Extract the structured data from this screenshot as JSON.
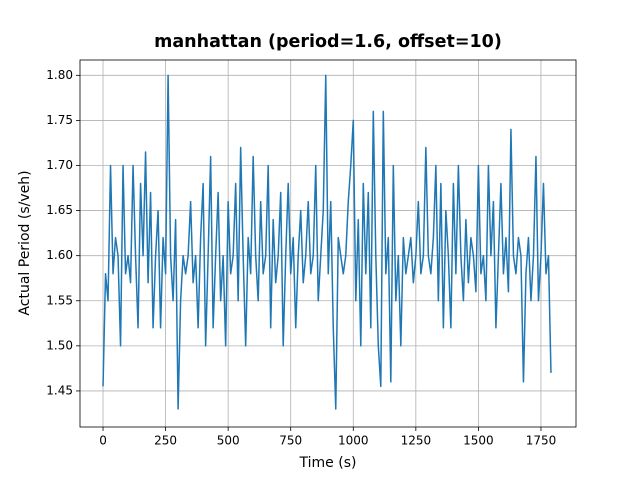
{
  "chart_data": {
    "type": "line",
    "title": "manhattan (period=1.6, offset=10)",
    "x_label": "Time (s)",
    "y_label": "Actual Period (s/veh)",
    "color": "#1f77b4",
    "title_color": "#8b0000",
    "grid": true,
    "xlim": [
      -92,
      1890
    ],
    "ylim": [
      1.41,
      1.817
    ],
    "xticks": [
      0,
      250,
      500,
      750,
      1000,
      1250,
      1500,
      1750
    ],
    "yticks": [
      1.45,
      {
        "value": 1.5,
        "label": "1.50"
      },
      1.55,
      {
        "value": 1.6,
        "label": "1.60"
      },
      1.65,
      {
        "value": 1.7,
        "label": "1.70"
      },
      1.75,
      {
        "value": 1.8,
        "label": "1.80"
      }
    ],
    "x": [
      0,
      10,
      20,
      30,
      40,
      50,
      60,
      70,
      80,
      90,
      100,
      110,
      120,
      130,
      140,
      150,
      160,
      170,
      180,
      190,
      200,
      210,
      220,
      230,
      240,
      250,
      260,
      270,
      280,
      290,
      300,
      310,
      320,
      330,
      340,
      350,
      360,
      370,
      380,
      390,
      400,
      410,
      420,
      430,
      440,
      450,
      460,
      470,
      480,
      490,
      500,
      510,
      520,
      530,
      540,
      550,
      560,
      570,
      580,
      590,
      600,
      610,
      620,
      630,
      640,
      650,
      660,
      670,
      680,
      690,
      700,
      710,
      720,
      730,
      740,
      750,
      760,
      770,
      780,
      790,
      800,
      810,
      820,
      830,
      840,
      850,
      860,
      870,
      880,
      890,
      900,
      910,
      920,
      930,
      940,
      950,
      960,
      970,
      980,
      990,
      1000,
      1010,
      1020,
      1030,
      1040,
      1050,
      1060,
      1070,
      1080,
      1090,
      1100,
      1110,
      1120,
      1130,
      1140,
      1150,
      1160,
      1170,
      1180,
      1190,
      1200,
      1210,
      1220,
      1230,
      1240,
      1250,
      1260,
      1270,
      1280,
      1290,
      1300,
      1310,
      1320,
      1330,
      1340,
      1350,
      1360,
      1370,
      1380,
      1390,
      1400,
      1410,
      1420,
      1430,
      1440,
      1450,
      1460,
      1470,
      1480,
      1490,
      1500,
      1510,
      1520,
      1530,
      1540,
      1550,
      1560,
      1570,
      1580,
      1590,
      1600,
      1610,
      1620,
      1630,
      1640,
      1650,
      1660,
      1670,
      1680,
      1690,
      1700,
      1710,
      1720,
      1730,
      1740,
      1750,
      1760,
      1770,
      1780,
      1790
    ],
    "values": [
      1.455,
      1.58,
      1.55,
      1.7,
      1.58,
      1.62,
      1.6,
      1.5,
      1.7,
      1.58,
      1.6,
      1.57,
      1.7,
      1.6,
      1.52,
      1.68,
      1.6,
      1.715,
      1.57,
      1.67,
      1.52,
      1.6,
      1.65,
      1.52,
      1.62,
      1.58,
      1.8,
      1.6,
      1.55,
      1.64,
      1.43,
      1.55,
      1.6,
      1.58,
      1.6,
      1.66,
      1.57,
      1.6,
      1.52,
      1.62,
      1.68,
      1.5,
      1.6,
      1.71,
      1.52,
      1.6,
      1.67,
      1.55,
      1.6,
      1.5,
      1.66,
      1.58,
      1.6,
      1.68,
      1.55,
      1.72,
      1.6,
      1.5,
      1.62,
      1.58,
      1.71,
      1.6,
      1.55,
      1.66,
      1.58,
      1.6,
      1.7,
      1.52,
      1.64,
      1.57,
      1.6,
      1.67,
      1.5,
      1.6,
      1.68,
      1.58,
      1.62,
      1.52,
      1.6,
      1.65,
      1.57,
      1.6,
      1.66,
      1.58,
      1.6,
      1.7,
      1.55,
      1.6,
      1.65,
      1.8,
      1.58,
      1.66,
      1.52,
      1.43,
      1.62,
      1.6,
      1.58,
      1.6,
      1.66,
      1.7,
      1.75,
      1.55,
      1.64,
      1.5,
      1.68,
      1.58,
      1.67,
      1.52,
      1.76,
      1.6,
      1.5,
      1.455,
      1.76,
      1.58,
      1.62,
      1.46,
      1.7,
      1.55,
      1.6,
      1.5,
      1.62,
      1.58,
      1.6,
      1.62,
      1.57,
      1.6,
      1.66,
      1.58,
      1.6,
      1.72,
      1.6,
      1.58,
      1.62,
      1.7,
      1.55,
      1.68,
      1.52,
      1.65,
      1.6,
      1.52,
      1.68,
      1.58,
      1.7,
      1.6,
      1.55,
      1.64,
      1.57,
      1.62,
      1.6,
      1.56,
      1.7,
      1.58,
      1.6,
      1.55,
      1.7,
      1.6,
      1.66,
      1.52,
      1.6,
      1.68,
      1.58,
      1.62,
      1.56,
      1.74,
      1.6,
      1.58,
      1.62,
      1.6,
      1.46,
      1.58,
      1.62,
      1.55,
      1.6,
      1.71,
      1.55,
      1.6,
      1.68,
      1.58,
      1.6,
      1.47
    ]
  }
}
